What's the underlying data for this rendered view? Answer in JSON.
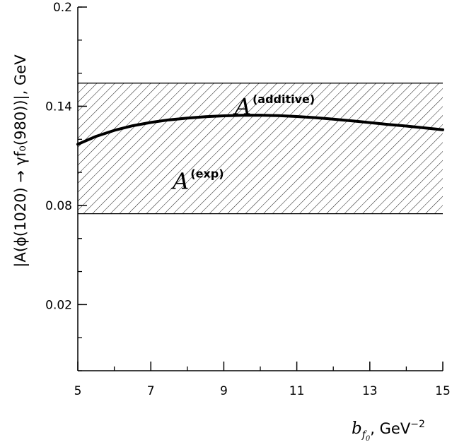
{
  "chart_data": {
    "type": "line",
    "title": "",
    "xlabel": {
      "var": "b",
      "sub": "f",
      "subsub": "0",
      "unit": ", GeV",
      "exp": "−2"
    },
    "ylabel": "|A(ϕ(1020) → γf₀(980))|, GeV",
    "xlim": [
      5,
      15
    ],
    "ylim": [
      -0.02,
      0.2
    ],
    "x_ticks": [
      "5",
      "7",
      "9",
      "11",
      "13",
      "15"
    ],
    "x_tick_values": [
      5,
      7,
      9,
      11,
      13,
      15
    ],
    "y_ticks": [
      "0.2",
      "0.14",
      "0.08",
      "0.02"
    ],
    "y_tick_values": [
      0.2,
      0.14,
      0.08,
      0.02
    ],
    "grid": false,
    "band": {
      "y_low": 0.075,
      "y_high": 0.154,
      "fill": "diagonal-hatch"
    },
    "annotations": {
      "additive": {
        "base": "A",
        "sup": "(additive)",
        "x": 9.3,
        "y": 0.135
      },
      "exp": {
        "base": "A",
        "sup": "(exp)",
        "x": 7.6,
        "y": 0.09
      }
    },
    "series": [
      {
        "x": [
          5,
          5.5,
          6,
          6.5,
          7,
          7.5,
          8,
          8.5,
          9,
          9.5,
          10,
          10.5,
          11,
          11.5,
          12,
          12.5,
          13,
          13.5,
          14,
          14.5,
          15
        ],
        "y": [
          0.117,
          0.1218,
          0.1254,
          0.1282,
          0.1302,
          0.1318,
          0.1328,
          0.1337,
          0.1342,
          0.1345,
          0.1346,
          0.1343,
          0.1338,
          0.1331,
          0.1322,
          0.1312,
          0.1301,
          0.129,
          0.128,
          0.1269,
          0.1258
        ]
      }
    ]
  }
}
